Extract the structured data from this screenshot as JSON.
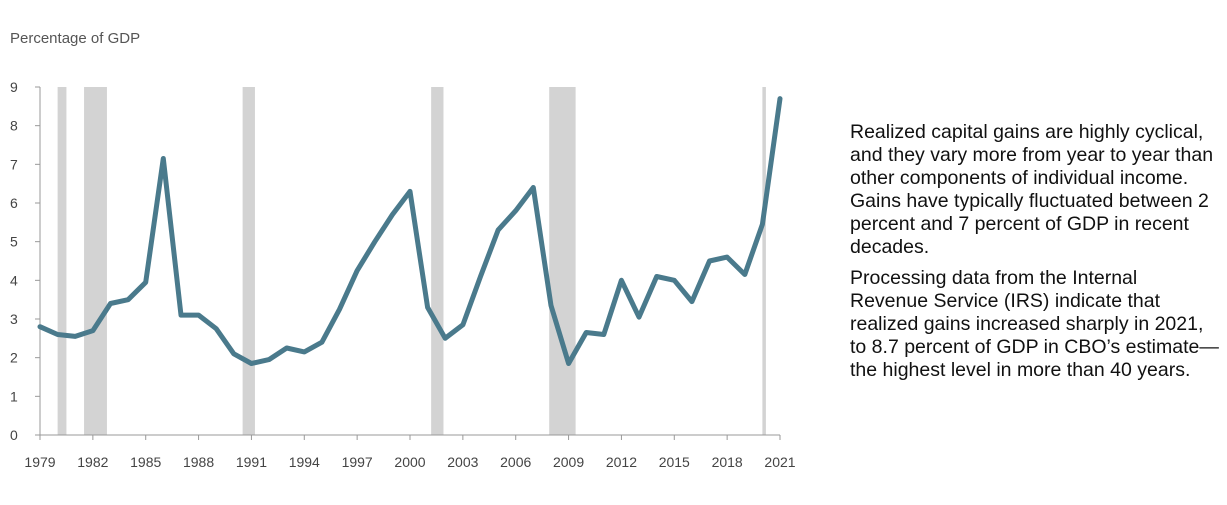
{
  "chart_data": {
    "type": "line",
    "title": "",
    "ylabel": "Percentage of GDP",
    "xlabel": "",
    "ylim": [
      0,
      9
    ],
    "xlim": [
      1979,
      2021
    ],
    "yticks": [
      "0",
      "1",
      "2",
      "3",
      "4",
      "5",
      "6",
      "7",
      "8",
      "9"
    ],
    "xticks": [
      "1979",
      "1982",
      "1985",
      "1988",
      "1991",
      "1994",
      "1997",
      "2000",
      "2003",
      "2006",
      "2009",
      "2012",
      "2015",
      "2018",
      "2021"
    ],
    "grid": false,
    "series_color": "#4a7a8c",
    "recession_color": "#d3d3d3",
    "recessions": [
      [
        1980.0,
        1980.5
      ],
      [
        1981.5,
        1982.8
      ],
      [
        1990.5,
        1991.2
      ],
      [
        2001.2,
        2001.9
      ],
      [
        2007.9,
        2009.4
      ],
      [
        2020.0,
        2020.2
      ]
    ],
    "series": [
      {
        "x": [
          1979,
          1980,
          1981,
          1982,
          1983,
          1984,
          1985,
          1986,
          1987,
          1988,
          1989,
          1990,
          1991,
          1992,
          1993,
          1994,
          1995,
          1996,
          1997,
          1998,
          1999,
          2000,
          2001,
          2002,
          2003,
          2004,
          2005,
          2006,
          2007,
          2008,
          2009,
          2010,
          2011,
          2012,
          2013,
          2014,
          2015,
          2016,
          2017,
          2018,
          2019,
          2020,
          2021
        ],
        "values": [
          2.8,
          2.6,
          2.55,
          2.7,
          3.4,
          3.5,
          3.95,
          7.15,
          3.1,
          3.1,
          2.75,
          2.1,
          1.85,
          1.95,
          2.25,
          2.15,
          2.4,
          3.25,
          4.25,
          5.0,
          5.7,
          6.3,
          3.3,
          2.5,
          2.85,
          4.1,
          5.3,
          5.8,
          6.4,
          3.35,
          1.85,
          2.65,
          2.6,
          4.0,
          3.05,
          4.1,
          4.0,
          3.45,
          4.5,
          4.6,
          4.15,
          5.45,
          8.7
        ]
      }
    ]
  },
  "annotation": {
    "p1": "Realized capital gains are highly cyclical, and they vary more from year to year than other components of individual income. Gains have typically fluctuated between 2 percent and 7 percent of GDP in recent decades.",
    "p2": "Processing data from the Internal Revenue Service (IRS) indicate that realized gains increased sharply in 2021, to 8.7 percent of GDP in CBO’s estimate—the highest level in more than 40 years."
  }
}
